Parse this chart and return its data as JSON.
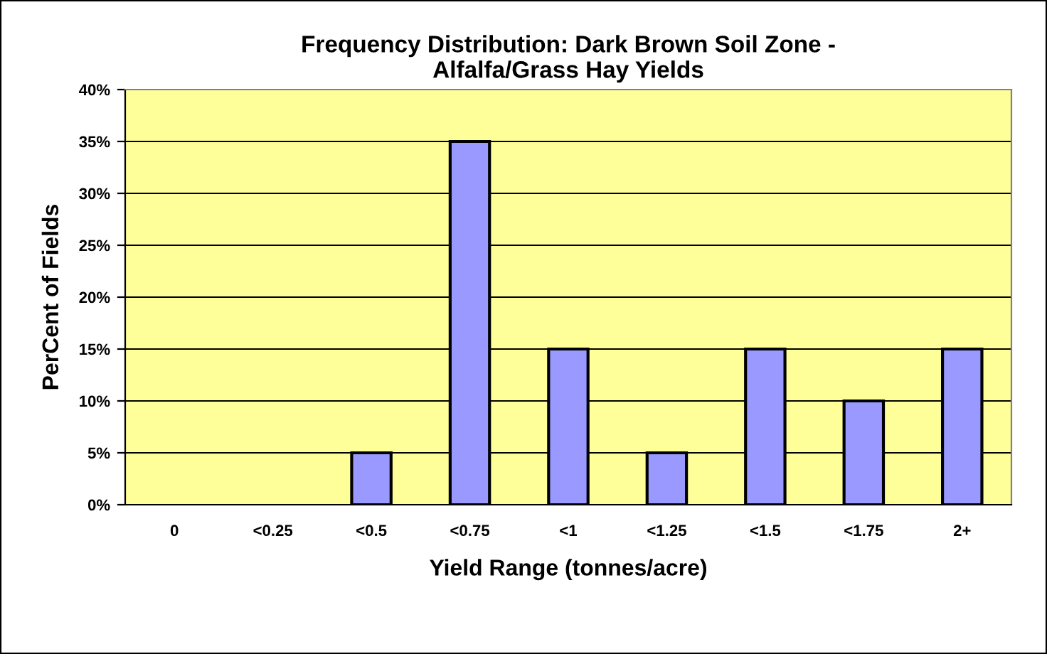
{
  "chart_data": {
    "type": "bar",
    "title": "Frequency Distribution: Dark Brown Soil Zone -\nAlfalfa/Grass Hay Yields",
    "xlabel": "Yield Range (tonnes/acre)",
    "ylabel": "PerCent of Fields",
    "categories": [
      "0",
      "<0.25",
      "<0.5",
      "<0.75",
      "<1",
      "<1.25",
      "<1.5",
      "<1.75",
      "2+"
    ],
    "values": [
      0,
      0,
      5,
      35,
      15,
      5,
      15,
      10,
      15
    ],
    "color": "#9999ff",
    "ylim": [
      0,
      40
    ],
    "yticks": [
      {
        "value": 0,
        "label": "0%"
      },
      {
        "value": 5,
        "label": "5%"
      },
      {
        "value": 10,
        "label": "10%"
      },
      {
        "value": 15,
        "label": "15%"
      },
      {
        "value": 20,
        "label": "20%"
      },
      {
        "value": 25,
        "label": "25%"
      },
      {
        "value": 30,
        "label": "30%"
      },
      {
        "value": 35,
        "label": "35%"
      },
      {
        "value": 40,
        "label": "40%"
      }
    ],
    "grid": "y",
    "legend": false
  }
}
